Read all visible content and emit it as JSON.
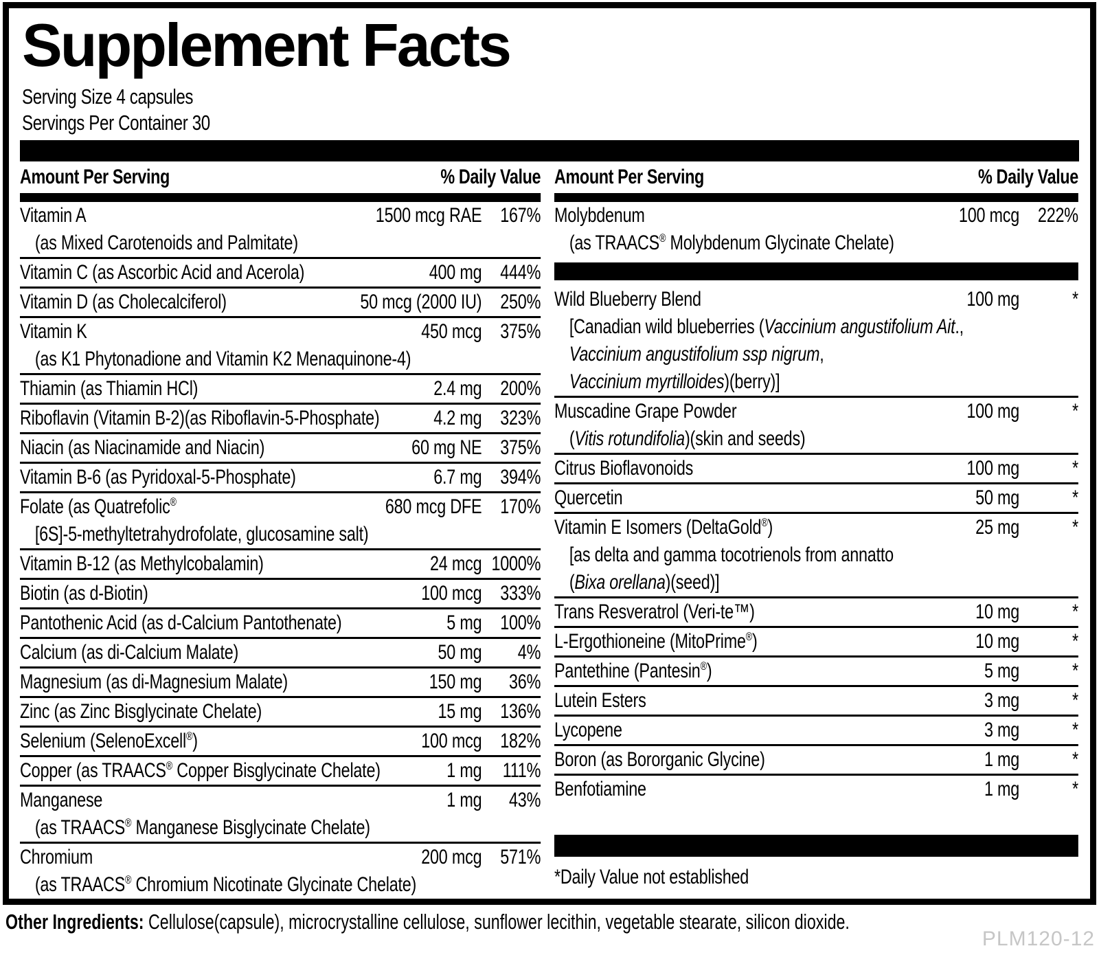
{
  "panel": {
    "title": "Supplement Facts",
    "serving_size": "Serving Size 4 capsules",
    "servings_per_container": "Servings Per Container 30",
    "header": {
      "amount_label": "Amount Per Serving",
      "dv_label": "% Daily Value"
    },
    "footnote": "*Daily Value not established",
    "left_rows": [
      {
        "name": [
          "Vitamin A"
        ],
        "amount": "1500 mcg RAE",
        "dv": "167%",
        "subs": [
          [
            "(as Mixed Carotenoids and Palmitate)"
          ]
        ]
      },
      {
        "name": [
          "Vitamin C (as Ascorbic Acid and Acerola)"
        ],
        "amount": "400 mg",
        "dv": "444%"
      },
      {
        "name": [
          "Vitamin D (as Cholecalciferol)"
        ],
        "amount": "50 mcg (2000 IU)",
        "dv": "250%"
      },
      {
        "name": [
          "Vitamin K"
        ],
        "amount": "450 mcg",
        "dv": "375%",
        "subs": [
          [
            "(as K1 Phytonadione and Vitamin K2 Menaquinone-4)"
          ]
        ]
      },
      {
        "name": [
          "Thiamin (as Thiamin HCl)"
        ],
        "amount": "2.4 mg",
        "dv": "200%"
      },
      {
        "name": [
          "Riboflavin (Vitamin B-2)(as Riboflavin-5-Phosphate)"
        ],
        "amount": "4.2 mg",
        "dv": "323%"
      },
      {
        "name": [
          "Niacin (as Niacinamide and Niacin)"
        ],
        "amount": "60 mg NE",
        "dv": "375%"
      },
      {
        "name": [
          "Vitamin B-6 (as Pyridoxal-5-Phosphate)"
        ],
        "amount": "6.7 mg",
        "dv": "394%"
      },
      {
        "name": [
          "Folate (as Quatrefolic",
          {
            "t": "®",
            "sup": true
          }
        ],
        "amount": "680 mcg DFE",
        "dv": "170%",
        "subs": [
          [
            "[6S]-5-methyltetrahydrofolate, glucosamine salt)"
          ]
        ]
      },
      {
        "name": [
          "Vitamin B-12 (as Methylcobalamin)"
        ],
        "amount": "24 mcg",
        "dv": "1000%"
      },
      {
        "name": [
          "Biotin (as d-Biotin)"
        ],
        "amount": "100 mcg",
        "dv": "333%"
      },
      {
        "name": [
          "Pantothenic Acid (as d-Calcium Pantothenate)"
        ],
        "amount": "5 mg",
        "dv": "100%"
      },
      {
        "name": [
          "Calcium (as di-Calcium Malate)"
        ],
        "amount": "50 mg",
        "dv": "4%"
      },
      {
        "name": [
          "Magnesium (as di-Magnesium Malate)"
        ],
        "amount": "150 mg",
        "dv": "36%"
      },
      {
        "name": [
          "Zinc (as Zinc Bisglycinate Chelate)"
        ],
        "amount": "15 mg",
        "dv": "136%"
      },
      {
        "name": [
          "Selenium (SelenoExcell",
          {
            "t": "®",
            "sup": true
          },
          ")"
        ],
        "amount": "100 mcg",
        "dv": "182%"
      },
      {
        "name": [
          "Copper (as TRAACS",
          {
            "t": "®",
            "sup": true
          },
          " Copper Bisglycinate Chelate)"
        ],
        "amount": "1 mg",
        "dv": "111%"
      },
      {
        "name": [
          "Manganese"
        ],
        "amount": "1 mg",
        "dv": "43%",
        "subs": [
          [
            "(as TRAACS",
            {
              "t": "®",
              "sup": true
            },
            " Manganese Bisglycinate Chelate)"
          ]
        ]
      },
      {
        "name": [
          "Chromium"
        ],
        "amount": "200 mcg",
        "dv": "571%",
        "subs": [
          [
            "(as TRAACS",
            {
              "t": "®",
              "sup": true
            },
            " Chromium Nicotinate Glycinate Chelate)"
          ]
        ],
        "no_border": true
      }
    ],
    "right_rows": [
      {
        "name": [
          "Molybdenum"
        ],
        "amount": "100 mcg",
        "dv": "222%",
        "subs": [
          [
            "(as TRAACS",
            {
              "t": "®",
              "sup": true
            },
            " Molybdenum Glycinate Chelate)"
          ]
        ],
        "no_border": true
      },
      {
        "type": "bar",
        "variant": "mid"
      },
      {
        "name": [
          "Wild Blueberry Blend"
        ],
        "amount": "100 mg",
        "dv": "*",
        "subs": [
          [
            "[Canadian wild blueberries (",
            {
              "t": "Vaccinium angustifolium Ait",
              "i": true
            },
            ".,"
          ],
          [
            {
              "t": "Vaccinium angustifolium ssp nigrum",
              "i": true
            },
            ","
          ],
          [
            {
              "t": "Vaccinium myrtilloides",
              "i": true
            },
            ")(berry)]"
          ]
        ]
      },
      {
        "name": [
          "Muscadine Grape Powder"
        ],
        "amount": "100 mg",
        "dv": "*",
        "subs": [
          [
            "(",
            {
              "t": "Vitis rotundifolia",
              "i": true
            },
            ")(skin and seeds)"
          ]
        ]
      },
      {
        "name": [
          "Citrus Bioflavonoids"
        ],
        "amount": "100 mg",
        "dv": "*"
      },
      {
        "name": [
          "Quercetin"
        ],
        "amount": "50 mg",
        "dv": "*"
      },
      {
        "name": [
          "Vitamin E Isomers (DeltaGold",
          {
            "t": "®",
            "sup": true
          },
          ")"
        ],
        "amount": "25 mg",
        "dv": "*",
        "subs": [
          [
            "[as delta and gamma tocotrienols from annatto"
          ],
          [
            "(",
            {
              "t": "Bixa orellana",
              "i": true
            },
            ")(seed)]"
          ]
        ]
      },
      {
        "name": [
          "Trans Resveratrol (Veri-te™)"
        ],
        "amount": "10 mg",
        "dv": "*"
      },
      {
        "name": [
          "L-Ergothioneine (MitoPrime",
          {
            "t": "®",
            "sup": true
          },
          ")"
        ],
        "amount": "10 mg",
        "dv": "*"
      },
      {
        "name": [
          "Pantethine (Pantesin",
          {
            "t": "®",
            "sup": true
          },
          ")"
        ],
        "amount": "5 mg",
        "dv": "*"
      },
      {
        "name": [
          "Lutein Esters"
        ],
        "amount": "3 mg",
        "dv": "*"
      },
      {
        "name": [
          "Lycopene"
        ],
        "amount": "3 mg",
        "dv": "*"
      },
      {
        "name": [
          "Boron (as Bororganic Glycine)"
        ],
        "amount": "1 mg",
        "dv": "*"
      },
      {
        "name": [
          "Benfotiamine"
        ],
        "amount": "1 mg",
        "dv": "*",
        "no_border": true
      },
      {
        "type": "bar",
        "variant": "bottom"
      }
    ]
  },
  "footer": {
    "other_ingredients_label": "Other Ingredients:",
    "other_ingredients_text": " Cellulose(capsule), microcrystalline cellulose, sunflower lecithin, vegetable stearate, silicon dioxide.",
    "product_code": "PLM120-12"
  },
  "colors": {
    "text": "#000000",
    "bar": "#000000",
    "background": "#ffffff",
    "product_code": "#c6c6c6"
  }
}
